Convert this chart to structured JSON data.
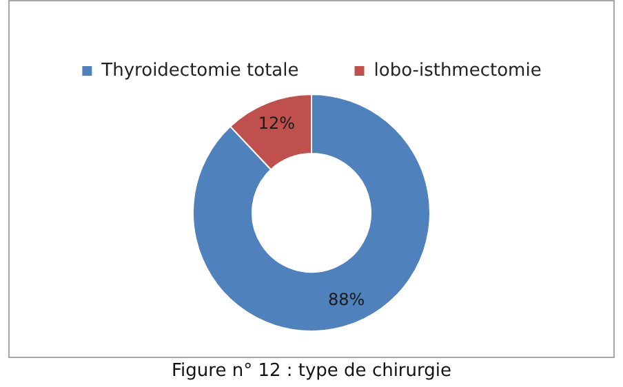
{
  "chart_data": {
    "type": "donut",
    "categories": [
      "Thyroidectomie totale",
      "lobo-isthmectomie"
    ],
    "values": [
      88,
      12
    ],
    "colors": [
      "#4f81bd",
      "#c0504d"
    ],
    "value_labels": [
      "88%",
      "12%"
    ],
    "legend": "top",
    "annotations": [
      "Figure n° 12 : type de chirurgie"
    ]
  }
}
